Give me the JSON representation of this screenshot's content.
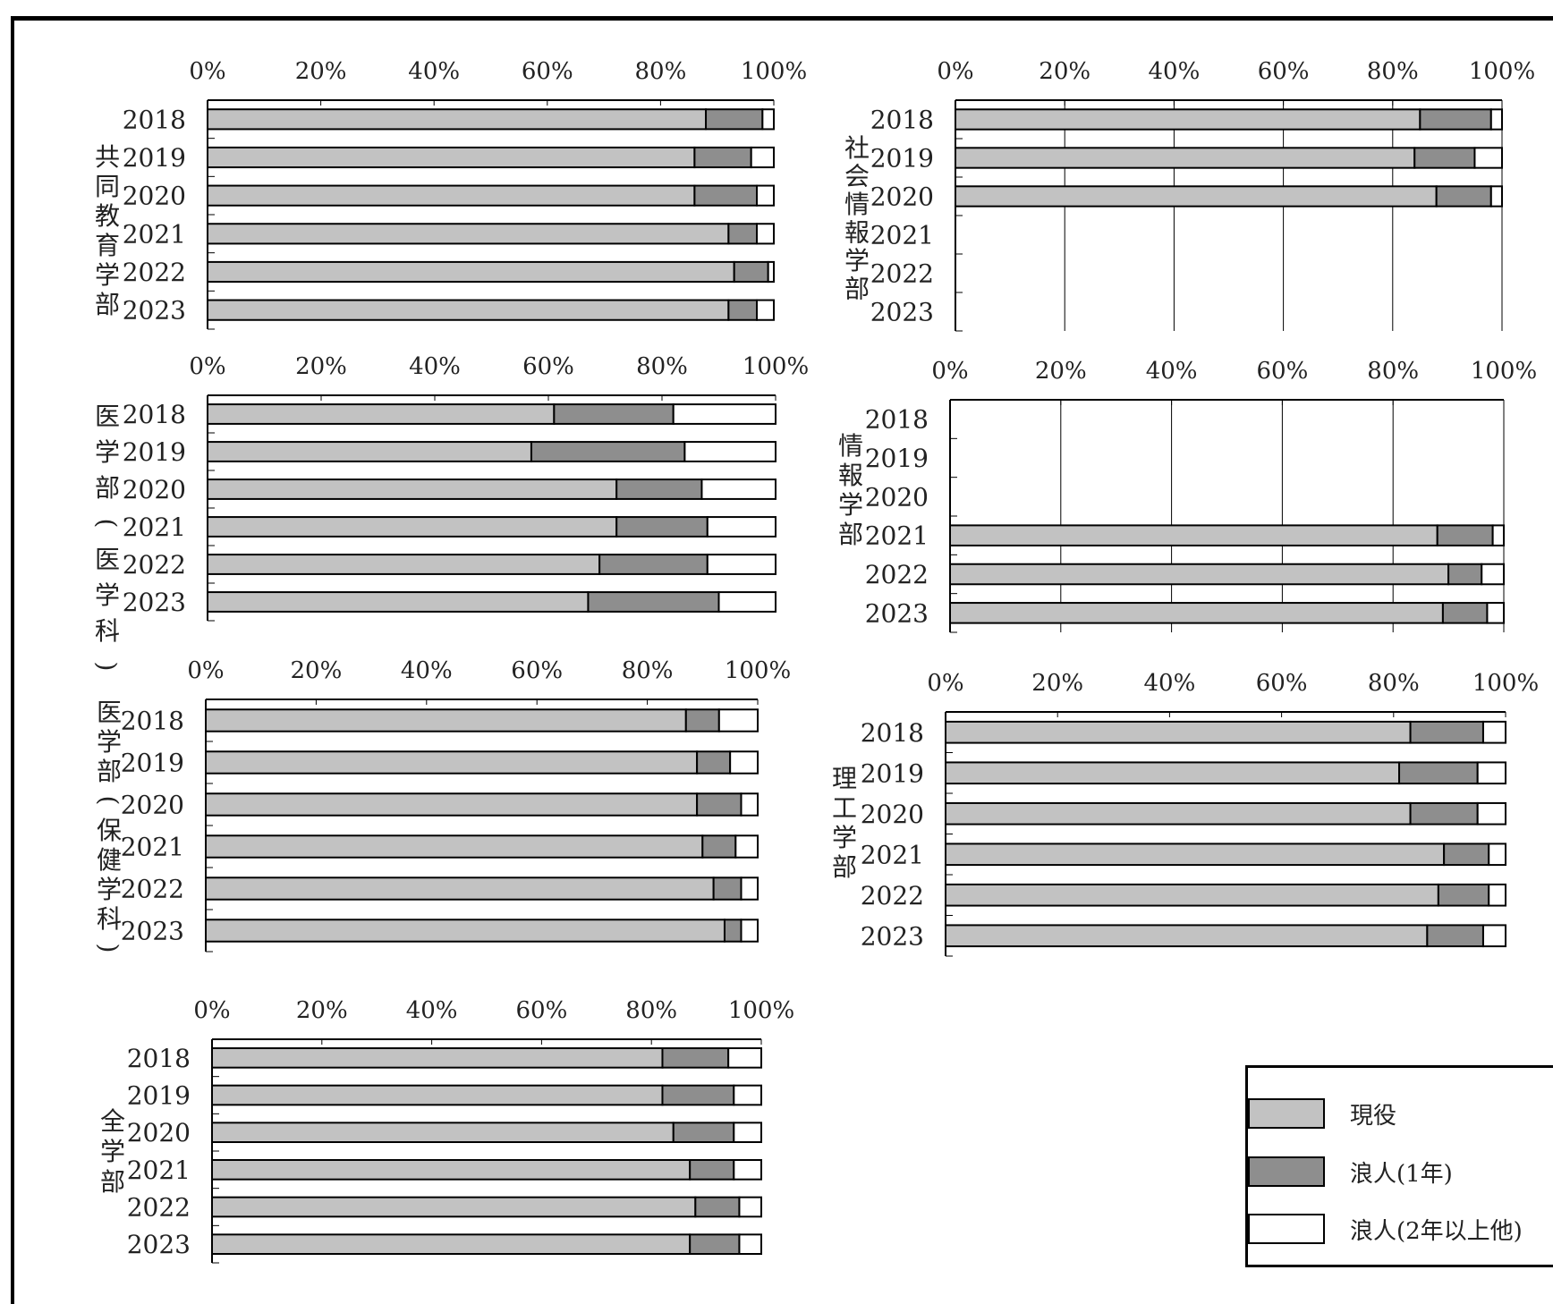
{
  "colors": {
    "現役": "#c2c2c2",
    "浪人(1年)": "#8e8e8e",
    "浪人(2年以上他)": "#ffffff"
  },
  "legend": {
    "items": [
      "現役",
      "浪人(1年)",
      "浪人(2年以上他)"
    ]
  },
  "chart_data": [
    {
      "type": "bar",
      "stacked": true,
      "orientation": "horizontal",
      "group_label": "共同教育学部",
      "xticks": [
        "0%",
        "20%",
        "40%",
        "60%",
        "80%",
        "100%"
      ],
      "xlim": [
        0,
        100
      ],
      "categories": [
        "2018",
        "2019",
        "2020",
        "2021",
        "2022",
        "2023"
      ],
      "series": [
        {
          "name": "現役",
          "values": [
            88,
            86,
            86,
            92,
            93,
            92
          ]
        },
        {
          "name": "浪人(1年)",
          "values": [
            10,
            10,
            11,
            5,
            6,
            5
          ]
        },
        {
          "name": "浪人(2年以上他)",
          "values": [
            2,
            4,
            3,
            3,
            1,
            3
          ]
        }
      ]
    },
    {
      "type": "bar",
      "stacked": true,
      "orientation": "horizontal",
      "group_label": "社会情報学部",
      "xticks": [
        "0%",
        "20%",
        "40%",
        "60%",
        "80%",
        "100%"
      ],
      "xlim": [
        0,
        100
      ],
      "categories": [
        "2018",
        "2019",
        "2020",
        "2021",
        "2022",
        "2023"
      ],
      "series": [
        {
          "name": "現役",
          "values": [
            85,
            84,
            88,
            null,
            null,
            null
          ]
        },
        {
          "name": "浪人(1年)",
          "values": [
            13,
            11,
            10,
            null,
            null,
            null
          ]
        },
        {
          "name": "浪人(2年以上他)",
          "values": [
            2,
            5,
            2,
            null,
            null,
            null
          ]
        }
      ]
    },
    {
      "type": "bar",
      "stacked": true,
      "orientation": "horizontal",
      "group_label": "医学部(医学科)",
      "xticks": [
        "0%",
        "20%",
        "40%",
        "60%",
        "80%",
        "100%"
      ],
      "xlim": [
        0,
        100
      ],
      "categories": [
        "2018",
        "2019",
        "2020",
        "2021",
        "2022",
        "2023"
      ],
      "series": [
        {
          "name": "現役",
          "values": [
            61,
            57,
            72,
            72,
            69,
            67
          ]
        },
        {
          "name": "浪人(1年)",
          "values": [
            21,
            27,
            15,
            16,
            19,
            23
          ]
        },
        {
          "name": "浪人(2年以上他)",
          "values": [
            18,
            16,
            13,
            12,
            12,
            10
          ]
        }
      ]
    },
    {
      "type": "bar",
      "stacked": true,
      "orientation": "horizontal",
      "group_label": "情報学部",
      "xticks": [
        "0%",
        "20%",
        "40%",
        "60%",
        "80%",
        "100%"
      ],
      "xlim": [
        0,
        100
      ],
      "categories": [
        "2018",
        "2019",
        "2020",
        "2021",
        "2022",
        "2023"
      ],
      "series": [
        {
          "name": "現役",
          "values": [
            null,
            null,
            null,
            88,
            90,
            89
          ]
        },
        {
          "name": "浪人(1年)",
          "values": [
            null,
            null,
            null,
            10,
            6,
            8
          ]
        },
        {
          "name": "浪人(2年以上他)",
          "values": [
            null,
            null,
            null,
            2,
            4,
            3
          ]
        }
      ]
    },
    {
      "type": "bar",
      "stacked": true,
      "orientation": "horizontal",
      "group_label": "医学部(保健学科)",
      "xticks": [
        "0%",
        "20%",
        "40%",
        "60%",
        "80%",
        "100%"
      ],
      "xlim": [
        0,
        100
      ],
      "categories": [
        "2018",
        "2019",
        "2020",
        "2021",
        "2022",
        "2023"
      ],
      "series": [
        {
          "name": "現役",
          "values": [
            87,
            89,
            89,
            90,
            92,
            94
          ]
        },
        {
          "name": "浪人(1年)",
          "values": [
            6,
            6,
            8,
            6,
            5,
            3
          ]
        },
        {
          "name": "浪人(2年以上他)",
          "values": [
            7,
            5,
            3,
            4,
            3,
            3
          ]
        }
      ]
    },
    {
      "type": "bar",
      "stacked": true,
      "orientation": "horizontal",
      "group_label": "理工学部",
      "xticks": [
        "0%",
        "20%",
        "40%",
        "60%",
        "80%",
        "100%"
      ],
      "xlim": [
        0,
        100
      ],
      "categories": [
        "2018",
        "2019",
        "2020",
        "2021",
        "2022",
        "2023"
      ],
      "series": [
        {
          "name": "現役",
          "values": [
            83,
            81,
            83,
            89,
            88,
            86
          ]
        },
        {
          "name": "浪人(1年)",
          "values": [
            13,
            14,
            12,
            8,
            9,
            10
          ]
        },
        {
          "name": "浪人(2年以上他)",
          "values": [
            4,
            5,
            5,
            3,
            3,
            4
          ]
        }
      ]
    },
    {
      "type": "bar",
      "stacked": true,
      "orientation": "horizontal",
      "group_label": "全学部",
      "xticks": [
        "0%",
        "20%",
        "40%",
        "60%",
        "80%",
        "100%"
      ],
      "xlim": [
        0,
        100
      ],
      "categories": [
        "2018",
        "2019",
        "2020",
        "2021",
        "2022",
        "2023"
      ],
      "series": [
        {
          "name": "現役",
          "values": [
            82,
            82,
            84,
            87,
            88,
            87
          ]
        },
        {
          "name": "浪人(1年)",
          "values": [
            12,
            13,
            11,
            8,
            8,
            9
          ]
        },
        {
          "name": "浪人(2年以上他)",
          "values": [
            6,
            5,
            5,
            5,
            4,
            4
          ]
        }
      ]
    }
  ]
}
